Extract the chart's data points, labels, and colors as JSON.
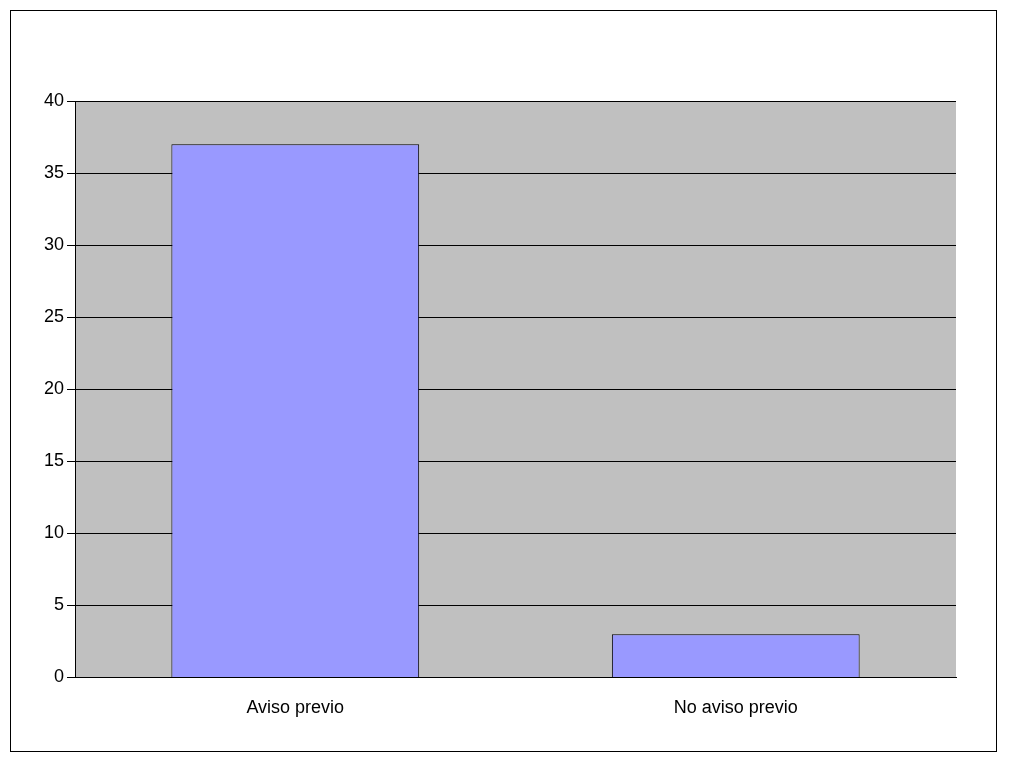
{
  "chart_data": {
    "type": "bar",
    "categories": [
      "Aviso previo",
      "No aviso previo"
    ],
    "values": [
      37,
      3
    ],
    "color": "#9999ff",
    "ylim": [
      0,
      40
    ],
    "yticks": [
      0,
      5,
      10,
      15,
      20,
      25,
      30,
      35,
      40
    ],
    "grid": "y",
    "legend": false
  }
}
